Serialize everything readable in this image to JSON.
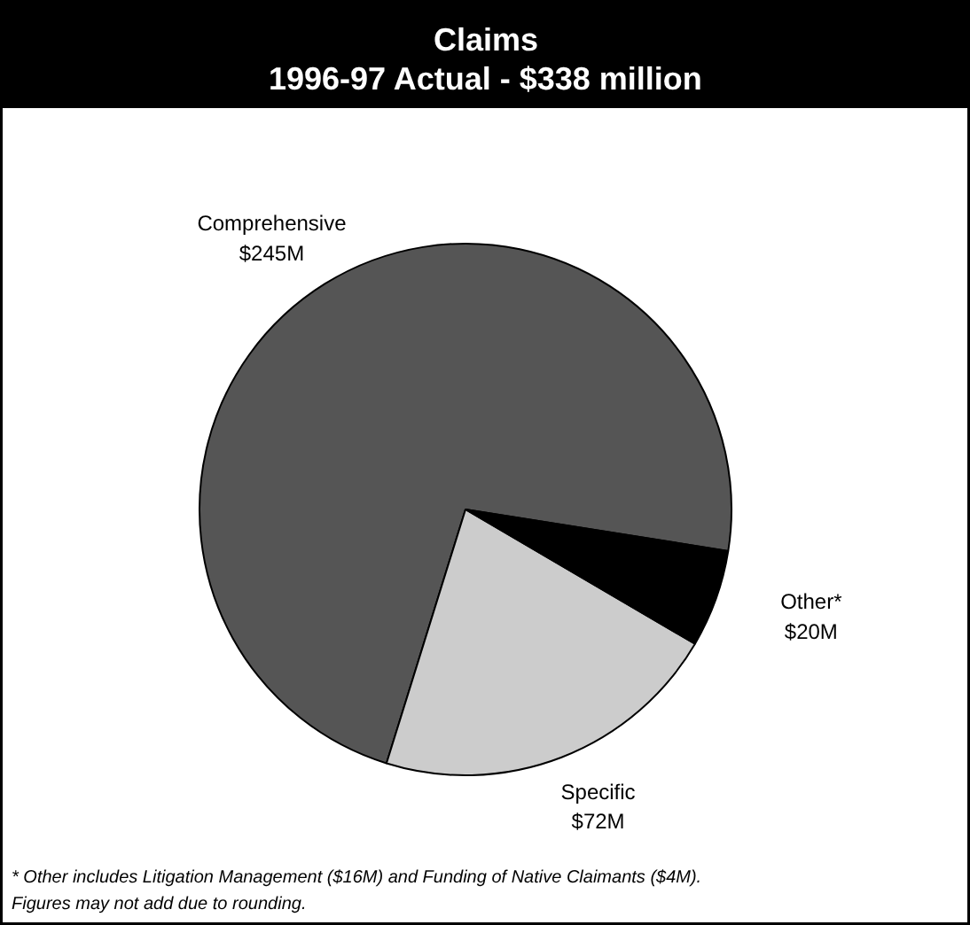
{
  "chart_data": {
    "type": "pie",
    "title": "Claims",
    "subtitle": "1996-97 Actual - $338 million",
    "categories": [
      "Comprehensive",
      "Specific",
      "Other*"
    ],
    "values": [
      245,
      72,
      20
    ],
    "colors": [
      "#555555",
      "#cccccc",
      "#000000"
    ],
    "value_labels": [
      "$245M",
      "$72M",
      "$20M"
    ],
    "annotations": [
      "* Other includes Litigation Management ($16M) and Funding of Native Claimants ($4M).",
      "Figures may not add due to rounding."
    ]
  }
}
